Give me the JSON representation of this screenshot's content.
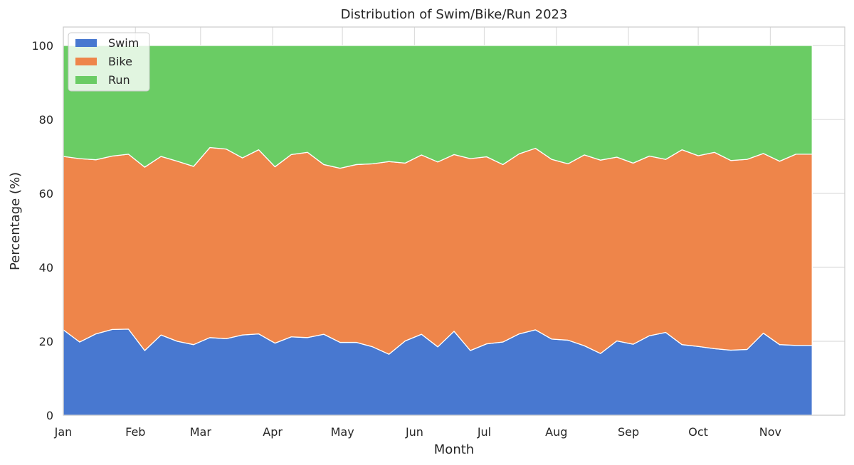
{
  "chart_data": {
    "type": "area",
    "stacked": true,
    "title": "Distribution of Swim/Bike/Run 2023",
    "xlabel": "Month",
    "ylabel": "Percentage (%)",
    "xlim": [
      "2023-01-01",
      "2023-12-03"
    ],
    "ylim": [
      0,
      105
    ],
    "grid": true,
    "legend_position": "top-left",
    "x_tick_labels": [
      "Jan",
      "Feb",
      "Mar",
      "Apr",
      "May",
      "Jun",
      "Jul",
      "Aug",
      "Sep",
      "Oct",
      "Nov"
    ],
    "x_tick_dates": [
      "2023-01-01",
      "2023-02-01",
      "2023-03-01",
      "2023-04-01",
      "2023-05-01",
      "2023-06-01",
      "2023-07-01",
      "2023-08-01",
      "2023-09-01",
      "2023-10-01",
      "2023-11-01"
    ],
    "y_ticks": [
      0,
      20,
      40,
      60,
      80,
      100
    ],
    "x": [
      "2023-01-01",
      "2023-01-08",
      "2023-01-15",
      "2023-01-22",
      "2023-01-29",
      "2023-02-05",
      "2023-02-12",
      "2023-02-19",
      "2023-02-26",
      "2023-03-05",
      "2023-03-12",
      "2023-03-19",
      "2023-03-26",
      "2023-04-02",
      "2023-04-09",
      "2023-04-16",
      "2023-04-23",
      "2023-04-30",
      "2023-05-07",
      "2023-05-14",
      "2023-05-21",
      "2023-05-28",
      "2023-06-04",
      "2023-06-11",
      "2023-06-18",
      "2023-06-25",
      "2023-07-02",
      "2023-07-09",
      "2023-07-16",
      "2023-07-23",
      "2023-07-30",
      "2023-08-06",
      "2023-08-13",
      "2023-08-20",
      "2023-08-27",
      "2023-09-03",
      "2023-09-10",
      "2023-09-17",
      "2023-09-24",
      "2023-10-01",
      "2023-10-08",
      "2023-10-15",
      "2023-10-22",
      "2023-10-29",
      "2023-11-05",
      "2023-11-12",
      "2023-11-19"
    ],
    "series": [
      {
        "name": "Swim",
        "color": "#4878d0",
        "values": [
          23.1,
          19.8,
          22.0,
          23.2,
          23.3,
          17.5,
          21.7,
          20.0,
          19.1,
          21.0,
          20.7,
          21.7,
          22.0,
          19.5,
          21.2,
          21.0,
          21.9,
          19.7,
          19.7,
          18.5,
          16.5,
          20.1,
          21.9,
          18.5,
          22.7,
          17.5,
          19.3,
          19.8,
          22.0,
          23.1,
          20.6,
          20.3,
          18.8,
          16.7,
          20.1,
          19.2,
          21.5,
          22.4,
          19.1,
          18.6,
          18.0,
          17.6,
          17.8,
          22.2,
          19.1,
          18.9,
          18.9
        ]
      },
      {
        "name": "Bike",
        "color": "#ee854a",
        "values": [
          46.9,
          49.6,
          47.1,
          46.9,
          47.3,
          49.6,
          48.3,
          48.7,
          48.2,
          51.4,
          51.3,
          47.9,
          49.8,
          47.7,
          49.3,
          50.1,
          45.9,
          47.1,
          48.1,
          49.5,
          52.1,
          48.1,
          48.5,
          50.0,
          47.8,
          51.9,
          50.6,
          48.0,
          48.7,
          49.1,
          48.6,
          47.7,
          51.6,
          52.3,
          49.7,
          49.0,
          48.6,
          46.8,
          52.7,
          51.6,
          53.1,
          51.3,
          51.4,
          48.6,
          49.6,
          51.7,
          51.7
        ]
      },
      {
        "name": "Run",
        "color": "#6acc64",
        "values": [
          30.0,
          30.6,
          30.9,
          29.9,
          29.4,
          32.9,
          30.0,
          31.3,
          32.7,
          27.6,
          28.0,
          30.4,
          28.2,
          32.8,
          29.5,
          28.9,
          32.2,
          33.2,
          32.2,
          32.0,
          31.4,
          31.8,
          29.6,
          31.5,
          29.5,
          30.6,
          30.1,
          32.2,
          29.3,
          27.8,
          30.8,
          32.0,
          29.6,
          31.0,
          30.2,
          31.8,
          29.9,
          30.8,
          28.2,
          29.8,
          28.9,
          31.1,
          30.8,
          29.2,
          31.3,
          29.4,
          29.4
        ]
      }
    ]
  }
}
